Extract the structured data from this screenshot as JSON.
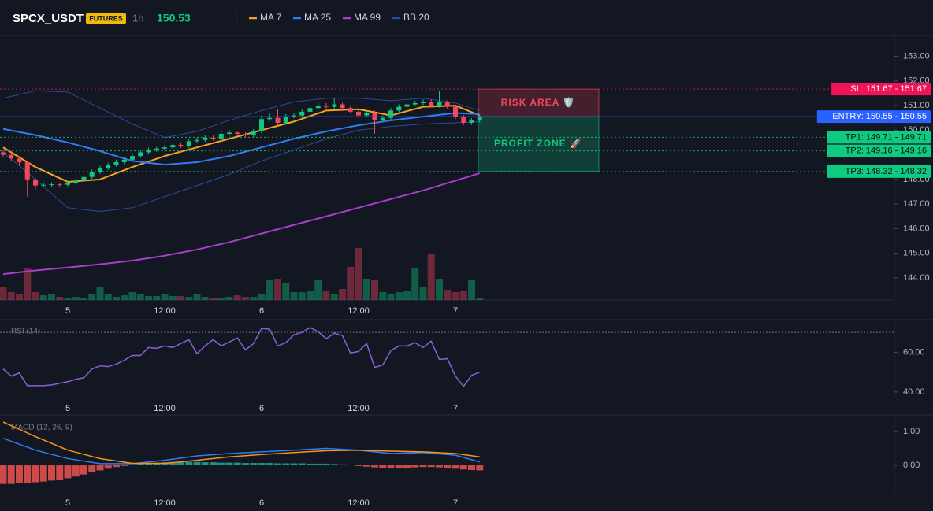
{
  "header": {
    "symbol": "SPCX_USDT",
    "badge": "FUTURES",
    "interval": "1h",
    "last_price": 150.53
  },
  "chart_data": [
    {
      "type": "candlestick",
      "categories": [
        null,
        null,
        null,
        null,
        null,
        null,
        null,
        null,
        "5",
        null,
        null,
        null,
        null,
        null,
        null,
        null,
        null,
        null,
        null,
        null,
        "12:00",
        null,
        null,
        null,
        null,
        null,
        null,
        null,
        null,
        null,
        null,
        null,
        "6",
        null,
        null,
        null,
        null,
        null,
        null,
        null,
        null,
        null,
        null,
        null,
        "12:00",
        null,
        null,
        null,
        null,
        null,
        null,
        null,
        null,
        null,
        null,
        null,
        "7",
        null,
        null,
        null
      ],
      "candles": {
        "open": [
          149.1,
          149.0,
          148.85,
          148.7,
          148.0,
          147.75,
          147.78,
          147.8,
          147.78,
          147.85,
          147.95,
          148.1,
          148.3,
          148.45,
          148.6,
          148.7,
          148.8,
          148.95,
          149.1,
          149.2,
          149.25,
          149.3,
          149.4,
          149.35,
          149.55,
          149.6,
          149.7,
          149.65,
          149.85,
          149.9,
          149.85,
          149.8,
          149.95,
          150.45,
          150.5,
          150.3,
          150.55,
          150.6,
          150.75,
          150.9,
          151.0,
          150.95,
          151.05,
          150.9,
          150.75,
          150.6,
          150.7,
          150.4,
          150.5,
          150.8,
          150.95,
          151.05,
          151.1,
          151.15,
          151.0,
          151.15,
          150.95,
          150.55,
          150.3,
          150.4
        ],
        "high": [
          149.2,
          149.1,
          148.95,
          148.75,
          148.05,
          147.85,
          147.88,
          147.86,
          147.92,
          148.03,
          148.2,
          148.4,
          148.55,
          148.68,
          148.8,
          148.9,
          149.05,
          149.2,
          149.3,
          149.32,
          149.4,
          149.5,
          149.48,
          149.65,
          149.7,
          149.8,
          149.78,
          149.95,
          150.0,
          149.98,
          149.92,
          150.05,
          150.6,
          150.68,
          150.85,
          150.65,
          150.7,
          150.85,
          151.05,
          151.12,
          151.1,
          151.3,
          151.12,
          151.0,
          150.85,
          150.8,
          150.8,
          150.6,
          150.9,
          151.05,
          151.15,
          151.2,
          151.25,
          151.25,
          151.6,
          151.22,
          151.02,
          150.62,
          150.48,
          150.62
        ],
        "low": [
          148.9,
          148.75,
          148.6,
          147.3,
          147.6,
          147.68,
          147.7,
          147.7,
          147.72,
          147.8,
          147.88,
          148.02,
          148.22,
          148.38,
          148.52,
          148.62,
          148.72,
          148.88,
          149.02,
          149.12,
          149.18,
          149.22,
          149.28,
          149.28,
          149.48,
          149.52,
          149.58,
          149.58,
          149.78,
          149.78,
          149.72,
          149.72,
          149.88,
          150.38,
          150.22,
          150.22,
          150.48,
          150.52,
          150.68,
          150.82,
          150.88,
          150.88,
          150.82,
          150.68,
          150.52,
          150.52,
          149.85,
          150.32,
          150.42,
          150.72,
          150.88,
          150.98,
          151.02,
          150.92,
          150.92,
          150.88,
          150.45,
          150.2,
          150.22,
          150.32
        ],
        "close": [
          149.0,
          148.85,
          148.7,
          148.0,
          147.75,
          147.78,
          147.8,
          147.78,
          147.85,
          147.95,
          148.1,
          148.3,
          148.45,
          148.6,
          148.7,
          148.8,
          148.95,
          149.1,
          149.2,
          149.25,
          149.3,
          149.4,
          149.35,
          149.55,
          149.6,
          149.7,
          149.65,
          149.85,
          149.9,
          149.85,
          149.8,
          149.95,
          150.45,
          150.5,
          150.3,
          150.55,
          150.6,
          150.75,
          150.9,
          151.0,
          150.95,
          151.05,
          150.9,
          150.75,
          150.6,
          150.7,
          150.4,
          150.5,
          150.8,
          150.95,
          151.05,
          151.1,
          151.15,
          151.0,
          151.15,
          150.95,
          150.55,
          150.3,
          150.4,
          150.55
        ]
      },
      "volume": [
        17,
        10,
        8,
        40,
        10,
        6,
        8,
        4,
        3,
        4,
        3,
        7,
        16,
        8,
        4,
        6,
        10,
        8,
        5,
        5,
        7,
        5,
        5,
        4,
        8,
        4,
        3,
        3,
        4,
        6,
        4,
        4,
        7,
        26,
        27,
        22,
        10,
        10,
        12,
        26,
        12,
        8,
        14,
        42,
        66,
        27,
        25,
        10,
        8,
        10,
        12,
        41,
        16,
        58,
        27,
        13,
        10,
        11,
        26,
        2
      ],
      "up_color": "#0ecb81",
      "down_color": "#f6465d",
      "series": [
        {
          "name": "MA 7",
          "color": "#f7a21b",
          "x": [
            0,
            4,
            8,
            12,
            16,
            20,
            24,
            28,
            32,
            36,
            40,
            44,
            48,
            52,
            56,
            59
          ],
          "values": [
            149.3,
            148.5,
            147.9,
            148.0,
            148.5,
            148.95,
            149.3,
            149.65,
            150.0,
            150.35,
            150.8,
            150.85,
            150.6,
            150.95,
            151.0,
            150.6
          ]
        },
        {
          "name": "MA 25",
          "color": "#2f7cf6",
          "x": [
            0,
            4,
            8,
            12,
            16,
            20,
            24,
            28,
            32,
            36,
            40,
            44,
            48,
            52,
            56,
            59
          ],
          "values": [
            150.05,
            149.8,
            149.5,
            149.15,
            148.75,
            148.6,
            148.7,
            148.95,
            149.3,
            149.65,
            149.95,
            150.2,
            150.4,
            150.55,
            150.7,
            150.65
          ]
        },
        {
          "name": "MA 99",
          "color": "#a63fc9",
          "x": [
            0,
            4,
            8,
            12,
            16,
            20,
            24,
            28,
            32,
            36,
            40,
            44,
            48,
            52,
            56,
            59
          ],
          "values": [
            144.15,
            144.3,
            144.42,
            144.55,
            144.7,
            144.9,
            145.15,
            145.45,
            145.8,
            146.15,
            146.5,
            146.85,
            147.2,
            147.55,
            147.95,
            148.25
          ]
        },
        {
          "name": "BB 20",
          "color": "#2b4a9e",
          "x": [
            0,
            4,
            8,
            12,
            16,
            20,
            24,
            28,
            32,
            36,
            40,
            44,
            48,
            52,
            56,
            59
          ],
          "values": [
            151.3,
            151.6,
            151.55,
            150.9,
            150.25,
            149.7,
            149.95,
            150.4,
            150.8,
            151.15,
            151.3,
            151.3,
            151.2,
            151.3,
            151.1,
            150.8
          ],
          "lower": [
            149.1,
            148.0,
            146.85,
            146.7,
            146.85,
            147.3,
            147.75,
            148.2,
            148.75,
            149.2,
            149.65,
            150.0,
            150.15,
            150.25,
            150.3,
            150.35
          ]
        }
      ],
      "ylim": [
        143.1,
        153.85
      ],
      "yticks": [
        {
          "value": 144,
          "label": "144.00"
        },
        {
          "value": 145,
          "label": "145.00"
        },
        {
          "value": 146,
          "label": "146.00"
        },
        {
          "value": 147,
          "label": "147.00"
        },
        {
          "value": 148,
          "label": "148.00"
        },
        {
          "value": 149,
          "label": "149.00"
        },
        {
          "value": 150,
          "label": "150.00"
        },
        {
          "value": 151,
          "label": "151.00"
        },
        {
          "value": 152,
          "label": "152.00"
        },
        {
          "value": 153,
          "label": "153.00"
        }
      ],
      "levels": [
        {
          "label": "SL: 151.67 - 151.67",
          "value": 151.67,
          "color": "#f0135a",
          "text_color": "#ffffff",
          "style": "dotted"
        },
        {
          "label": "ENTRY: 150.55 - 150.55",
          "value": 150.55,
          "color": "#2962ff",
          "text_color": "#ffffff",
          "style": "solid"
        },
        {
          "label": "TP1: 149.71 - 149.71",
          "value": 149.71,
          "color": "#0ecb81",
          "text_color": "#0b0e11",
          "style": "dotted"
        },
        {
          "label": "TP2: 149.16 - 149.16",
          "value": 149.16,
          "color": "#0ecb81",
          "text_color": "#0b0e11",
          "style": "dotted"
        },
        {
          "label": "TP3: 148.32 - 148.32",
          "value": 148.32,
          "color": "#0ecb81",
          "text_color": "#0b0e11",
          "style": "dotted"
        }
      ],
      "zones": [
        {
          "label": "RISK AREA 🛡️",
          "top": 151.67,
          "bottom": 150.55,
          "color": "#f6465d"
        },
        {
          "label": "PROFIT ZONE 🚀",
          "top": 150.55,
          "bottom": 148.32,
          "color": "#0ecb81"
        }
      ]
    },
    {
      "type": "line",
      "title": "RSI (14)",
      "categories": [
        null,
        null,
        null,
        null,
        null,
        null,
        null,
        null,
        "5",
        null,
        null,
        null,
        null,
        null,
        null,
        null,
        null,
        null,
        null,
        null,
        "12:00",
        null,
        null,
        null,
        null,
        null,
        null,
        null,
        null,
        null,
        null,
        null,
        "6",
        null,
        null,
        null,
        null,
        null,
        null,
        null,
        null,
        null,
        null,
        null,
        "12:00",
        null,
        null,
        null,
        null,
        null,
        null,
        null,
        null,
        null,
        null,
        null,
        "7",
        null,
        null,
        null
      ],
      "series": [
        {
          "color": "#8c5fd6",
          "values": [
            51.6,
            48.0,
            49.6,
            43.2,
            43.2,
            43.2,
            43.6,
            44.4,
            45.2,
            46.4,
            47.2,
            51.6,
            53.2,
            52.8,
            54.0,
            56.0,
            58.4,
            58.4,
            62.4,
            62.0,
            63.2,
            62.4,
            64.4,
            66.4,
            59.2,
            63.2,
            66.4,
            63.2,
            65.2,
            67.2,
            61.2,
            64.4,
            72.0,
            71.6,
            63.2,
            64.8,
            68.8,
            70.0,
            72.4,
            70.4,
            66.8,
            69.6,
            68.4,
            59.6,
            60.4,
            64.4,
            52.4,
            53.6,
            60.8,
            63.2,
            63.2,
            64.8,
            62.4,
            65.6,
            56.4,
            56.8,
            48.0,
            42.8,
            48.4,
            50.0
          ]
        }
      ],
      "ylim": [
        37.2,
        75.6
      ],
      "yticks": [
        {
          "value": 40,
          "label": "40.00"
        },
        {
          "value": 60,
          "label": "60.00"
        }
      ],
      "reference_lines": [
        70
      ]
    },
    {
      "type": "line",
      "title": "MACD (12, 26, 9)",
      "categories": [
        null,
        null,
        null,
        null,
        null,
        null,
        null,
        null,
        "5",
        null,
        null,
        null,
        null,
        null,
        null,
        null,
        null,
        null,
        null,
        null,
        "12:00",
        null,
        null,
        null,
        null,
        null,
        null,
        null,
        null,
        null,
        null,
        null,
        "6",
        null,
        null,
        null,
        null,
        null,
        null,
        null,
        null,
        null,
        null,
        null,
        "12:00",
        null,
        null,
        null,
        null,
        null,
        null,
        null,
        null,
        null,
        null,
        null,
        "7",
        null,
        null,
        null
      ],
      "histogram": {
        "up_color": "#26a69a",
        "down_color": "#ef5350",
        "values": [
          -0.55,
          -0.55,
          -0.53,
          -0.52,
          -0.5,
          -0.48,
          -0.45,
          -0.42,
          -0.38,
          -0.33,
          -0.27,
          -0.21,
          -0.15,
          -0.1,
          -0.05,
          -0.02,
          0.02,
          0.05,
          0.07,
          0.08,
          0.09,
          0.1,
          0.1,
          0.1,
          0.1,
          0.09,
          0.09,
          0.08,
          0.08,
          0.08,
          0.07,
          0.07,
          0.07,
          0.07,
          0.06,
          0.06,
          0.06,
          0.06,
          0.05,
          0.05,
          0.05,
          0.04,
          0.03,
          0.02,
          -0.02,
          -0.04,
          -0.06,
          -0.07,
          -0.08,
          -0.08,
          -0.07,
          -0.06,
          -0.05,
          -0.05,
          -0.06,
          -0.08,
          -0.1,
          -0.12,
          -0.14,
          -0.15
        ]
      },
      "series": [
        {
          "color": "#2f7cf6",
          "x": [
            0,
            4,
            8,
            12,
            16,
            20,
            24,
            28,
            32,
            36,
            40,
            44,
            48,
            52,
            56,
            59
          ],
          "values": [
            0.8,
            0.45,
            0.2,
            0.05,
            0.05,
            0.15,
            0.28,
            0.35,
            0.4,
            0.45,
            0.5,
            0.45,
            0.35,
            0.38,
            0.3,
            0.1
          ]
        },
        {
          "color": "#f7931a",
          "x": [
            0,
            4,
            8,
            12,
            16,
            20,
            24,
            28,
            32,
            36,
            40,
            44,
            48,
            52,
            56,
            59
          ],
          "values": [
            1.28,
            0.85,
            0.45,
            0.2,
            0.06,
            0.06,
            0.15,
            0.25,
            0.32,
            0.38,
            0.43,
            0.45,
            0.42,
            0.4,
            0.35,
            0.25
          ]
        }
      ],
      "ylim": [
        -0.79,
        1.42
      ],
      "yticks": [
        {
          "value": 0,
          "label": "0.00"
        },
        {
          "value": 1,
          "label": "1.00"
        }
      ]
    }
  ]
}
